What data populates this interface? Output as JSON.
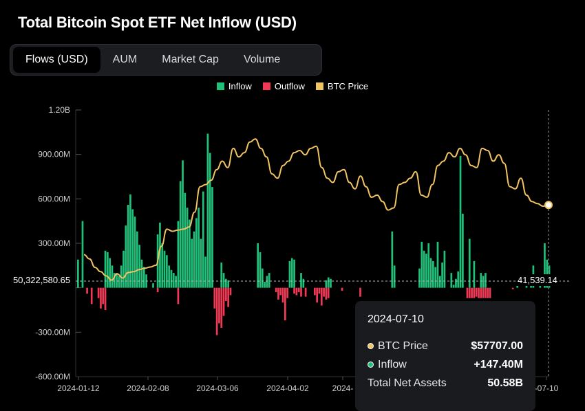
{
  "header": {
    "title": "Total Bitcoin Spot ETF Net Inflow (USD)"
  },
  "tabs": [
    {
      "label": "Flows (USD)",
      "active": true
    },
    {
      "label": "AUM",
      "active": false
    },
    {
      "label": "Market Cap",
      "active": false
    },
    {
      "label": "Volume",
      "active": false
    }
  ],
  "colors": {
    "inflow": "#1fc07a",
    "outflow": "#f03a55",
    "price": "#f0c460",
    "background": "#000000"
  },
  "chart_data": {
    "type": "bar",
    "legend": [
      {
        "label": "Inflow",
        "color": "#1fc07a"
      },
      {
        "label": "Outflow",
        "color": "#f03a55"
      },
      {
        "label": "BTC Price",
        "color": "#f0c460"
      }
    ],
    "legend_position": "top-center",
    "x_tick_labels": [
      "2024-01-12",
      "2024-02-08",
      "2024-03-06",
      "2024-04-02",
      "2024-",
      "-07-10"
    ],
    "y_tick_labels": [
      "1.20B",
      "900.00M",
      "600.00M",
      "300.00M",
      "-300.00M",
      "-600.00M"
    ],
    "ylim": [
      -600,
      1200
    ],
    "y_unit": "M USD",
    "reference_line": {
      "left_label": "50,322,580.65",
      "right_label": "41,539.14"
    },
    "series": [
      {
        "name": "Inflow",
        "values": [
          190,
          0,
          450,
          0,
          0,
          0,
          0,
          0,
          0,
          0,
          0,
          0,
          250,
          240,
          200,
          150,
          100,
          100,
          80,
          150,
          250,
          420,
          560,
          630,
          530,
          480,
          380,
          290,
          190,
          140,
          90,
          0,
          0,
          30,
          0,
          360,
          440,
          300,
          250,
          220,
          150,
          120,
          100,
          80,
          450,
          720,
          860,
          640,
          540,
          460,
          330,
          380,
          470,
          540,
          330,
          650,
          210,
          1040,
          910,
          680,
          0,
          0,
          0,
          170,
          100,
          60,
          50,
          0,
          0,
          0,
          0,
          0,
          0,
          0,
          0,
          0,
          0,
          0,
          0,
          300,
          240,
          130,
          40,
          80,
          100,
          0,
          0,
          0,
          0,
          0,
          0,
          0,
          0,
          180,
          200,
          190,
          0,
          0,
          100,
          60,
          0,
          0,
          0,
          0,
          0,
          0,
          0,
          0,
          0,
          50,
          70,
          60,
          0,
          0,
          0,
          0,
          0,
          0,
          0,
          0,
          0,
          0,
          0,
          0,
          0,
          0,
          0,
          0,
          0,
          0,
          0,
          0,
          0,
          0,
          0,
          0,
          0,
          0,
          380,
          150,
          0,
          0,
          0,
          0,
          0,
          0,
          0,
          0,
          0,
          0,
          130,
          310,
          250,
          230,
          300,
          200,
          180,
          140,
          310,
          80,
          170,
          250,
          0,
          0,
          100,
          20,
          60,
          110,
          890,
          500,
          0,
          0,
          330,
          0,
          180,
          0,
          0,
          100,
          80,
          100,
          0,
          0,
          0,
          0,
          0,
          0,
          0,
          0,
          0,
          0,
          0,
          0,
          0,
          20,
          0,
          0,
          0,
          20,
          0,
          40,
          150,
          0,
          0,
          20,
          0,
          300,
          190,
          150
        ],
        "color": "#1fc07a"
      },
      {
        "name": "Outflow",
        "values": [
          0,
          0,
          0,
          0,
          -40,
          0,
          -110,
          0,
          0,
          -70,
          -140,
          -110,
          -150,
          0,
          0,
          0,
          0,
          0,
          0,
          0,
          0,
          0,
          0,
          0,
          0,
          0,
          0,
          0,
          0,
          0,
          0,
          0,
          0,
          0,
          0,
          -30,
          0,
          0,
          0,
          0,
          0,
          0,
          0,
          0,
          -110,
          0,
          0,
          0,
          0,
          0,
          0,
          0,
          0,
          0,
          0,
          0,
          0,
          0,
          0,
          0,
          -140,
          -320,
          -240,
          -270,
          -190,
          -90,
          -130,
          -50,
          0,
          0,
          0,
          0,
          0,
          0,
          0,
          0,
          0,
          0,
          0,
          0,
          0,
          0,
          0,
          0,
          0,
          0,
          0,
          -30,
          -80,
          -50,
          -100,
          -220,
          -70,
          0,
          0,
          -40,
          -50,
          -30,
          -60,
          0,
          -60,
          0,
          0,
          0,
          -50,
          -100,
          -40,
          -120,
          -60,
          -80,
          -70,
          0,
          0,
          0,
          0,
          0,
          -20,
          0,
          0,
          0,
          0,
          0,
          0,
          0,
          -60,
          0,
          0,
          0,
          0,
          0,
          0,
          0,
          0,
          0,
          0,
          0,
          0,
          0,
          0,
          0,
          0,
          0,
          0,
          0,
          0,
          0,
          0,
          0,
          0,
          0,
          0,
          0,
          0,
          0,
          0,
          0,
          0,
          0,
          0,
          0,
          0,
          0,
          0,
          0,
          0,
          0,
          0,
          0,
          0,
          0,
          0,
          -70,
          -70,
          -70,
          -70,
          -60,
          -70,
          -70,
          -70,
          -70,
          -70,
          -70,
          0,
          0,
          0,
          0,
          0,
          0,
          0,
          0,
          0,
          -10,
          0,
          0,
          0
        ],
        "color": "#f03a55"
      },
      {
        "name": "BTC Price",
        "values": [
          46000,
          45000,
          43000,
          42000,
          41000,
          40000,
          41500,
          40500,
          41800,
          42000,
          42500,
          42800,
          43100,
          43500,
          48000,
          52000,
          51500,
          51800,
          52000,
          52500,
          56000,
          62000,
          62500,
          63500,
          66000,
          68000,
          66500,
          71000,
          69000,
          70000,
          72500,
          73200,
          71000,
          69000,
          65000,
          64000,
          67000,
          68000,
          70000,
          70500,
          69500,
          71000,
          71500,
          66500,
          64000,
          63000,
          65500,
          66000,
          63000,
          61500,
          64500,
          62000,
          59500,
          60000,
          58500,
          56500,
          57000,
          62500,
          63000,
          64000,
          65500,
          60000,
          59500,
          62500,
          67000,
          68000,
          70000,
          69000,
          71000,
          69500,
          67000,
          66500,
          71000,
          70500,
          68000,
          69500,
          67500,
          62000,
          61500,
          64000,
          60000,
          58500,
          58000,
          57400,
          57700
        ],
        "color": "#f0c460"
      }
    ],
    "tooltip": {
      "date": "2024-07-10",
      "rows": [
        {
          "label": "BTC Price",
          "value": "$57707.00",
          "color": "#f0c460"
        },
        {
          "label": "Inflow",
          "value": "+147.40M",
          "color": "#1fc07a"
        },
        {
          "label": "Total Net Assets",
          "value": "50.58B"
        }
      ]
    }
  }
}
